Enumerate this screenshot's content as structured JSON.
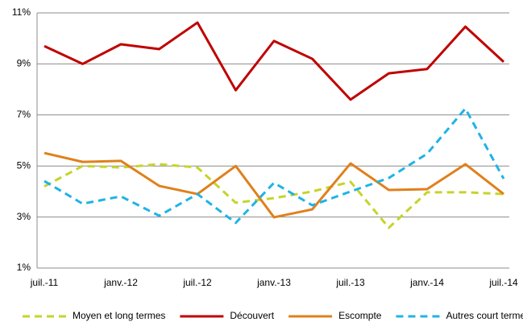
{
  "chart_data": {
    "type": "line",
    "categories": [
      "juil.-11",
      null,
      "janv.-12",
      null,
      "juil.-12",
      null,
      "janv.-13",
      null,
      "juil.-13",
      null,
      "janv.-14",
      null,
      "juil.-14"
    ],
    "series": [
      {
        "name": "Moyen et long termes",
        "color": "#c6d42a",
        "dashed": true,
        "values": [
          4.2,
          5.0,
          4.94,
          5.07,
          4.94,
          3.56,
          3.74,
          4.0,
          4.38,
          2.58,
          3.97,
          3.97,
          3.9
        ]
      },
      {
        "name": "Découvert",
        "color": "#c00000",
        "dashed": false,
        "values": [
          9.7,
          9.0,
          9.77,
          9.58,
          10.62,
          7.97,
          9.9,
          9.2,
          7.6,
          8.63,
          8.8,
          10.46,
          9.08
        ]
      },
      {
        "name": "Escompte",
        "color": "#e0801c",
        "dashed": false,
        "values": [
          5.51,
          5.16,
          5.2,
          4.22,
          3.9,
          5.0,
          2.99,
          3.3,
          5.1,
          4.06,
          4.09,
          5.07,
          3.9
        ]
      },
      {
        "name": "Autres court terme",
        "color": "#1fb3e6",
        "dashed": true,
        "values": [
          4.41,
          3.52,
          3.81,
          3.05,
          3.9,
          2.77,
          4.34,
          3.46,
          4.0,
          4.53,
          5.48,
          7.25,
          4.5
        ]
      }
    ],
    "ylim": [
      1,
      11
    ],
    "yticks": [
      {
        "value": 1,
        "label": "1%"
      },
      {
        "value": 3,
        "label": "3%"
      },
      {
        "value": 5,
        "label": "5%"
      },
      {
        "value": 7,
        "label": "7%"
      },
      {
        "value": 9,
        "label": "9%"
      },
      {
        "value": 11,
        "label": "11%"
      }
    ],
    "grid": true,
    "legend": "bottom"
  }
}
